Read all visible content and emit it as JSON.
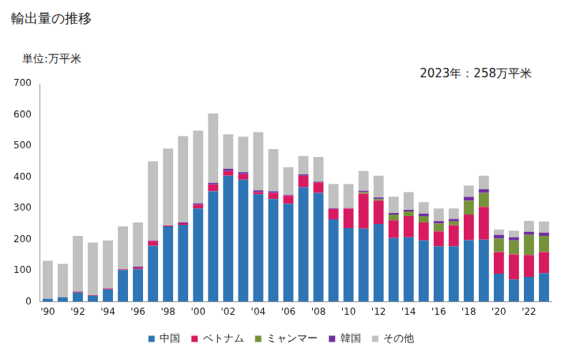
{
  "chart_data": {
    "type": "bar",
    "title": "輸出量の推移",
    "ylabel": "単位:万平米",
    "annotation": "2023年：258万平米",
    "categories": [
      "'90",
      null,
      "'92",
      null,
      "'94",
      null,
      "'96",
      null,
      "'98",
      null,
      "'00",
      null,
      "'02",
      null,
      "'04",
      null,
      "'06",
      null,
      "'08",
      null,
      "'10",
      null,
      "'12",
      null,
      "'14",
      null,
      "'16",
      null,
      "'18",
      null,
      "'20",
      null,
      "'22",
      null
    ],
    "series": [
      {
        "name": "中国",
        "color": "#2e75b6",
        "values": [
          10,
          15,
          30,
          20,
          40,
          102,
          105,
          180,
          242,
          247,
          300,
          355,
          405,
          392,
          345,
          330,
          315,
          368,
          350,
          265,
          237,
          235,
          250,
          205,
          207,
          197,
          178,
          178,
          198,
          200,
          90,
          72,
          80,
          92
        ]
      },
      {
        "name": "ベトナム",
        "color": "#d81b60",
        "values": [
          0,
          0,
          3,
          2,
          3,
          3,
          5,
          15,
          3,
          5,
          12,
          22,
          15,
          18,
          7,
          20,
          25,
          37,
          33,
          33,
          62,
          112,
          75,
          57,
          68,
          58,
          48,
          68,
          82,
          105,
          70,
          80,
          70,
          68
        ]
      },
      {
        "name": "ミャンマー",
        "color": "#76933c",
        "values": [
          0,
          0,
          0,
          0,
          0,
          0,
          0,
          0,
          0,
          0,
          0,
          0,
          0,
          0,
          0,
          0,
          0,
          0,
          0,
          0,
          0,
          5,
          5,
          18,
          15,
          20,
          25,
          12,
          45,
          45,
          43,
          45,
          65,
          52
        ]
      },
      {
        "name": "韓国",
        "color": "#7030a0",
        "values": [
          0,
          0,
          0,
          0,
          0,
          0,
          3,
          2,
          0,
          3,
          4,
          5,
          7,
          6,
          6,
          5,
          3,
          4,
          3,
          2,
          2,
          5,
          5,
          5,
          5,
          8,
          8,
          8,
          12,
          12,
          12,
          10,
          10,
          10
        ]
      },
      {
        "name": "その他",
        "color": "#c0c0c0",
        "values": [
          122,
          107,
          179,
          168,
          154,
          137,
          142,
          254,
          247,
          277,
          234,
          223,
          111,
          114,
          187,
          135,
          89,
          59,
          79,
          78,
          77,
          63,
          70,
          53,
          57,
          37,
          41,
          34,
          36,
          43,
          17,
          21,
          35,
          36
        ]
      }
    ],
    "ylim": [
      0,
      700
    ],
    "yticks": [
      0,
      100,
      200,
      300,
      400,
      500,
      600,
      700
    ],
    "stacked": true,
    "grid": false,
    "legend": "bottom"
  }
}
